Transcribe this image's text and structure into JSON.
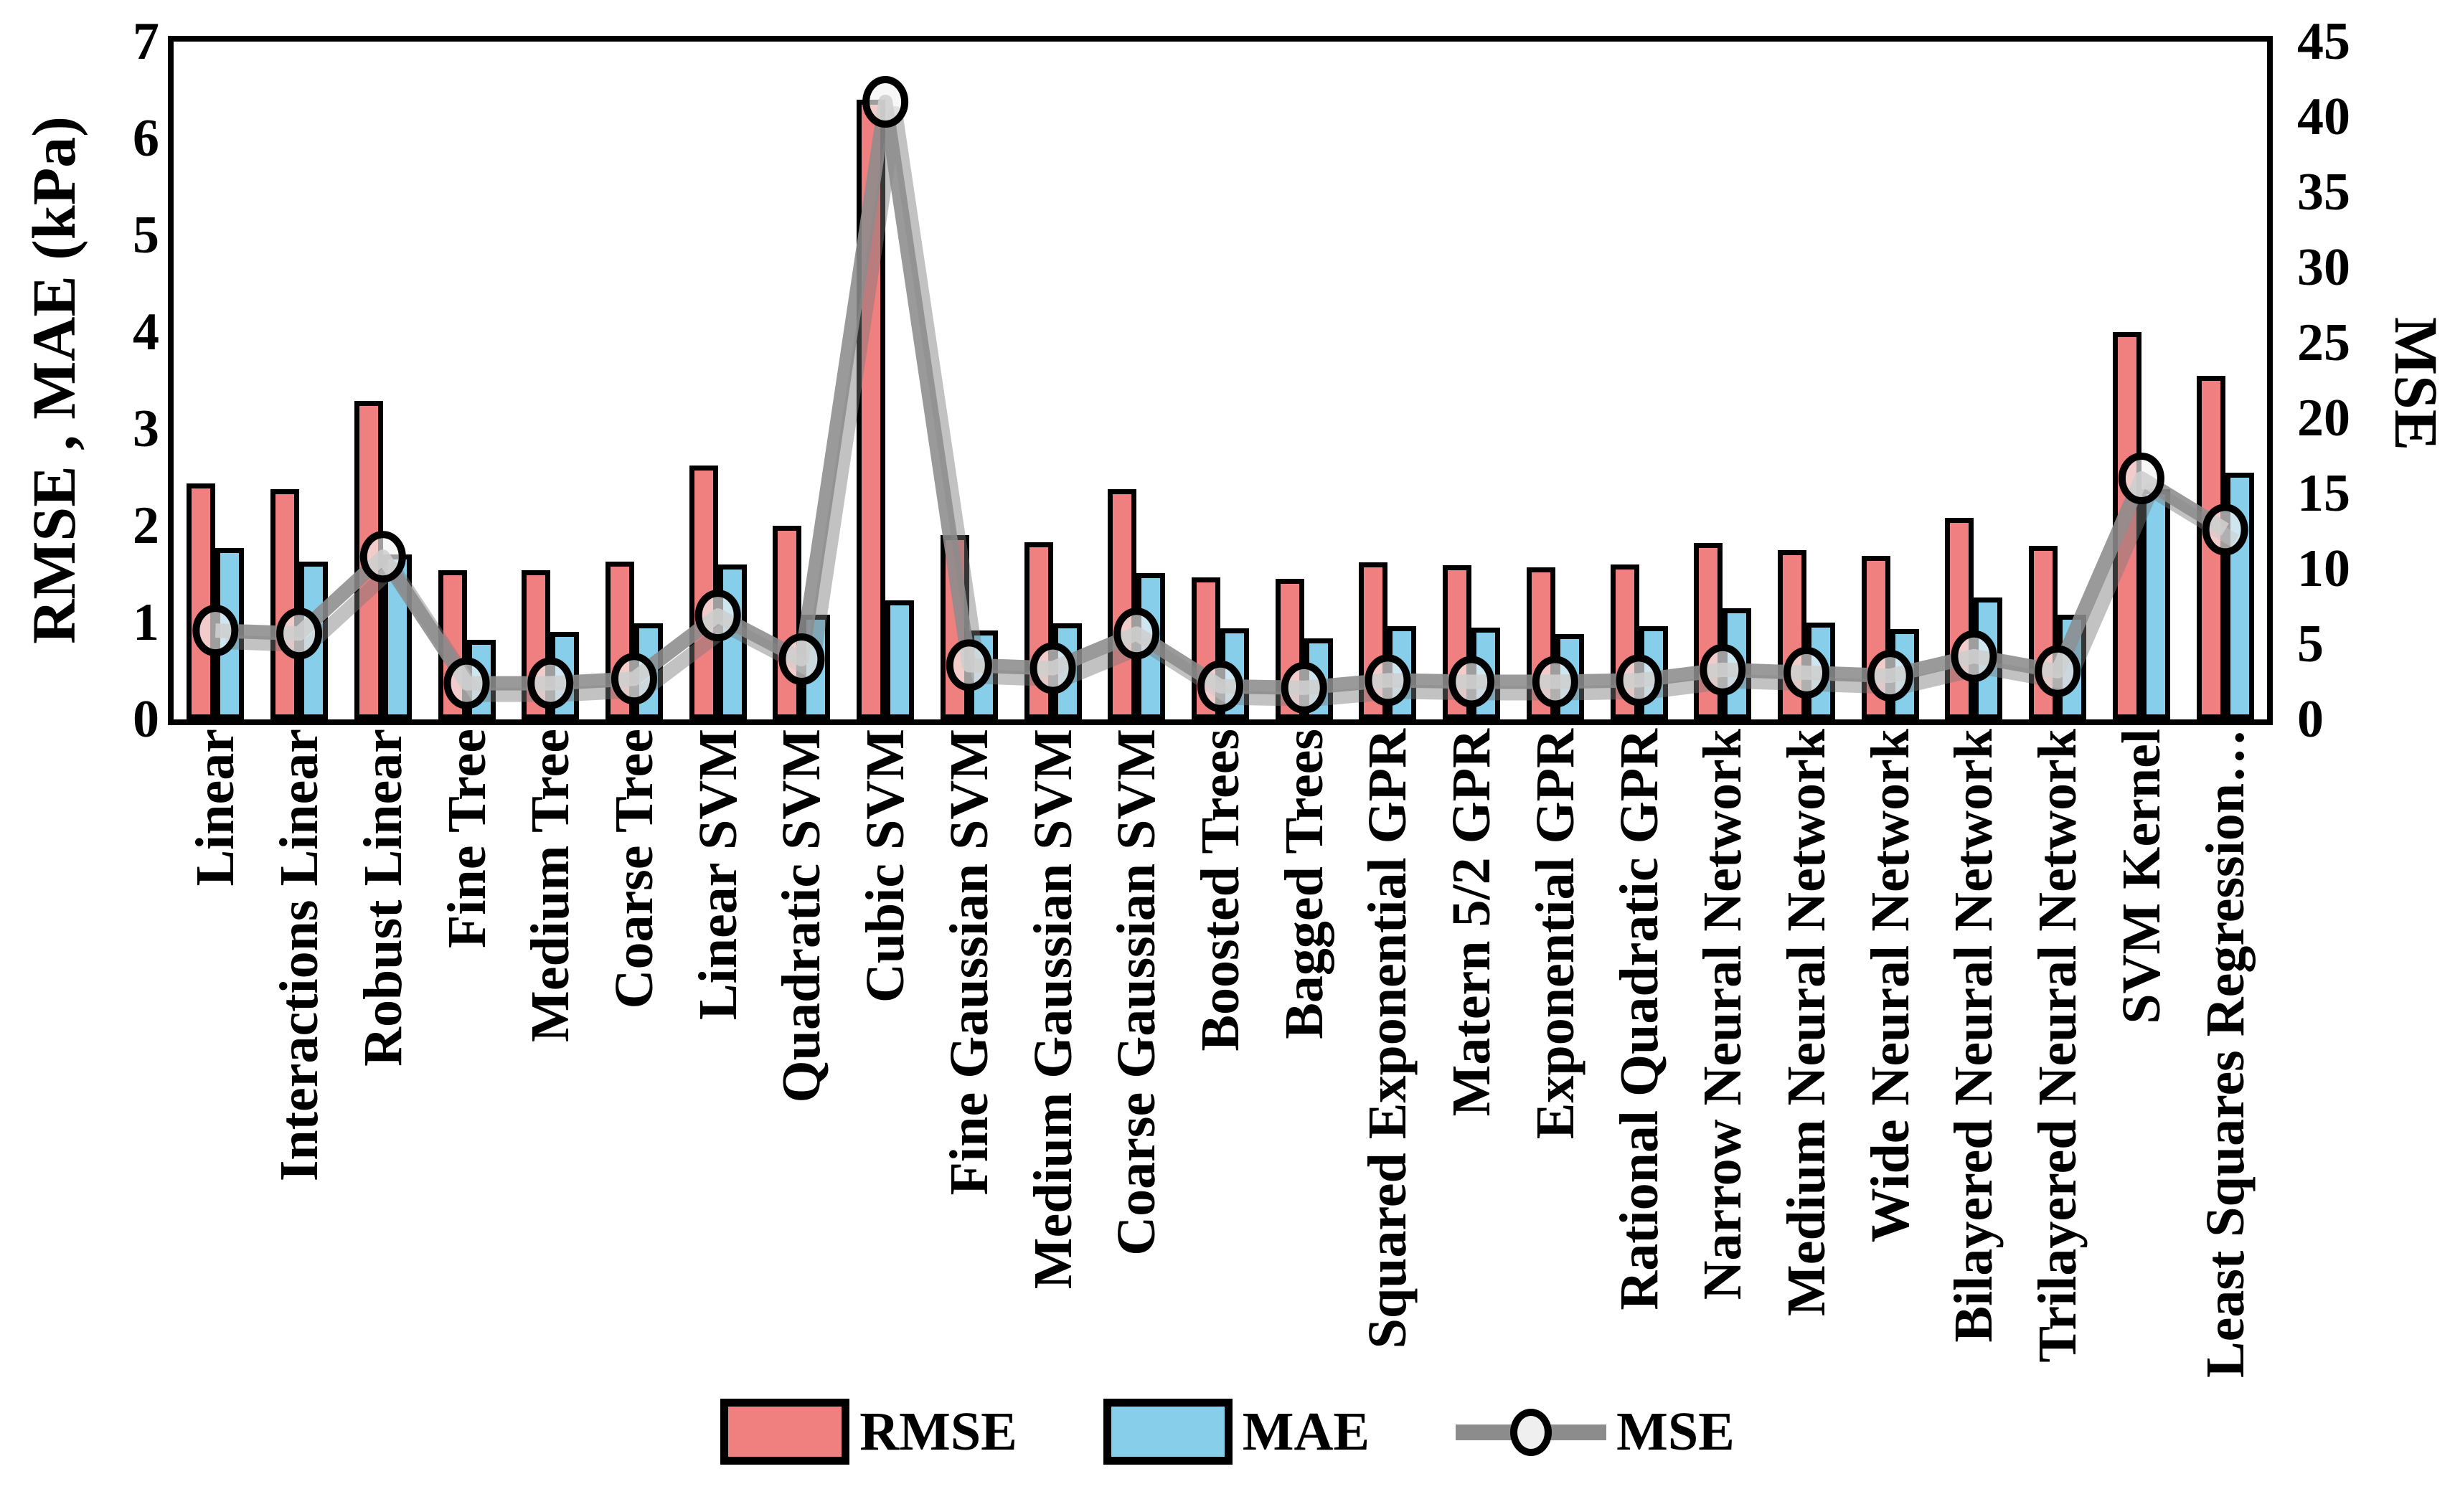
{
  "figure": {
    "background": "#FFFFFF"
  },
  "chart_data": {
    "type": "bar",
    "subtype": "grouped bars with secondary-axis line overlay",
    "title": "",
    "categories": [
      "Linear",
      "Interactions Linear",
      "Robust Linear",
      "Fine Tree",
      "Medium Tree",
      "Coarse Tree",
      "Linear SVM",
      "Quadratic SVM",
      "Cubic SVM",
      "Fine Gaussian SVM",
      "Medium Gaussian SVM",
      "Coarse Gaussian SVM",
      "Boosted Trees",
      "Bagged Trees",
      "Squared Exponential GPR",
      "Matern 5/2 GPR",
      "Exponential GPR",
      "Rational Quadratic GPR",
      "Narrow Neural Network",
      "Medium Neural Network",
      "Wide Neural Network",
      "Bilayered Neural Network",
      "Trilayered Neural Network",
      "SVM Kernel",
      "Least Squares Regression…"
    ],
    "series": [
      {
        "name": "RMSE",
        "type": "bar",
        "axis": "left",
        "color": "#F08080",
        "border_color": "#000000",
        "values": [
          2.44,
          2.38,
          3.29,
          1.54,
          1.54,
          1.63,
          2.62,
          2.0,
          6.4,
          1.9,
          1.83,
          2.38,
          1.47,
          1.45,
          1.62,
          1.59,
          1.57,
          1.6,
          1.82,
          1.75,
          1.69,
          2.08,
          1.79,
          4.0,
          3.55
        ]
      },
      {
        "name": "MAE",
        "type": "bar",
        "axis": "left",
        "color": "#87CEEB",
        "border_color": "#000000",
        "values": [
          1.77,
          1.63,
          1.7,
          0.82,
          0.9,
          0.99,
          1.6,
          1.08,
          1.23,
          0.92,
          0.99,
          1.51,
          0.94,
          0.84,
          0.96,
          0.95,
          0.88,
          0.96,
          1.15,
          1.0,
          0.93,
          1.26,
          1.08,
          2.38,
          2.55
        ]
      },
      {
        "name": "MSE",
        "type": "line",
        "axis": "right",
        "color": "#8C8C8C",
        "marker": "open-circle",
        "marker_fill": "rgba(242,242,242,0.65)",
        "marker_border": "#000000",
        "values": [
          5.9,
          5.7,
          10.8,
          2.4,
          2.4,
          2.7,
          6.9,
          4.0,
          41.0,
          3.6,
          3.4,
          5.7,
          2.2,
          2.1,
          2.6,
          2.5,
          2.5,
          2.6,
          3.3,
          3.1,
          2.9,
          4.2,
          3.2,
          16.0,
          12.6
        ]
      }
    ],
    "left_axis": {
      "label": "RMSE , MAE (kPa)",
      "min": 0,
      "max": 7,
      "tick_step": 1,
      "ticks": [
        "0",
        "1",
        "2",
        "3",
        "4",
        "5",
        "6",
        "7"
      ]
    },
    "right_axis": {
      "label": "MSE",
      "min": 0,
      "max": 45,
      "tick_step": 5,
      "ticks": [
        "0",
        "5",
        "10",
        "15",
        "20",
        "25",
        "30",
        "35",
        "40",
        "45"
      ]
    },
    "grid": false,
    "legend": {
      "position": "bottom",
      "entries": [
        "RMSE",
        "MAE",
        "MSE"
      ]
    }
  }
}
